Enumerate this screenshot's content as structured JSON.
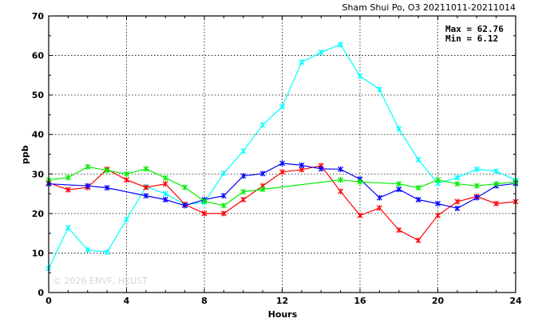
{
  "chart_data": {
    "type": "line",
    "title": "Sham Shui Po, O3 20211011-20211014",
    "xlabel": "Hours",
    "ylabel": "ppb",
    "xlim": [
      0,
      24
    ],
    "ylim": [
      0,
      70
    ],
    "x_ticks": [
      0,
      4,
      8,
      12,
      16,
      20,
      24
    ],
    "y_ticks": [
      0,
      10,
      20,
      30,
      40,
      50,
      60,
      70
    ],
    "grid": true,
    "stats": {
      "max_label": "Max = 62.76",
      "min_label": "Min =  6.12"
    },
    "watermark": "© 2026  ENVF, HKUST",
    "x": [
      0,
      1,
      2,
      3,
      4,
      5,
      6,
      7,
      8,
      9,
      10,
      11,
      12,
      13,
      14,
      15,
      16,
      17,
      18,
      19,
      20,
      21,
      22,
      23,
      24
    ],
    "series": [
      {
        "color": "#00ffff",
        "values": [
          6.12,
          16.4,
          10.8,
          10.2,
          18.5,
          26.8,
          25.0,
          22.3,
          22.8,
          30.2,
          35.8,
          42.4,
          47.0,
          58.3,
          60.8,
          62.76,
          54.8,
          51.4,
          41.4,
          33.6,
          27.6,
          29.1,
          31.2,
          30.7,
          28.4
        ]
      },
      {
        "color": "#ff0000",
        "values": [
          27.8,
          26.0,
          26.6,
          31.2,
          28.5,
          26.6,
          27.5,
          22.3,
          20.0,
          20.0,
          23.5,
          27.0,
          30.5,
          31.1,
          32.1,
          25.6,
          19.5,
          21.4,
          15.8,
          13.2,
          19.5,
          23.0,
          24.3,
          22.5,
          23.0
        ]
      },
      {
        "color": "#0000ff",
        "values": [
          27.5,
          null,
          27.0,
          26.5,
          null,
          24.5,
          23.5,
          22.0,
          23.5,
          24.5,
          29.5,
          30.1,
          32.7,
          32.2,
          31.3,
          31.2,
          28.7,
          24.0,
          26.1,
          23.5,
          22.5,
          21.3,
          24.0,
          27.0,
          27.6
        ]
      },
      {
        "color": "#00ee00",
        "values": [
          28.5,
          29.1,
          31.8,
          30.9,
          30.0,
          31.3,
          29.0,
          26.6,
          23.1,
          22.0,
          25.5,
          26.1,
          null,
          null,
          null,
          28.5,
          28.0,
          null,
          27.5,
          26.5,
          28.5,
          27.5,
          27.0,
          27.5,
          28.0
        ]
      }
    ]
  }
}
